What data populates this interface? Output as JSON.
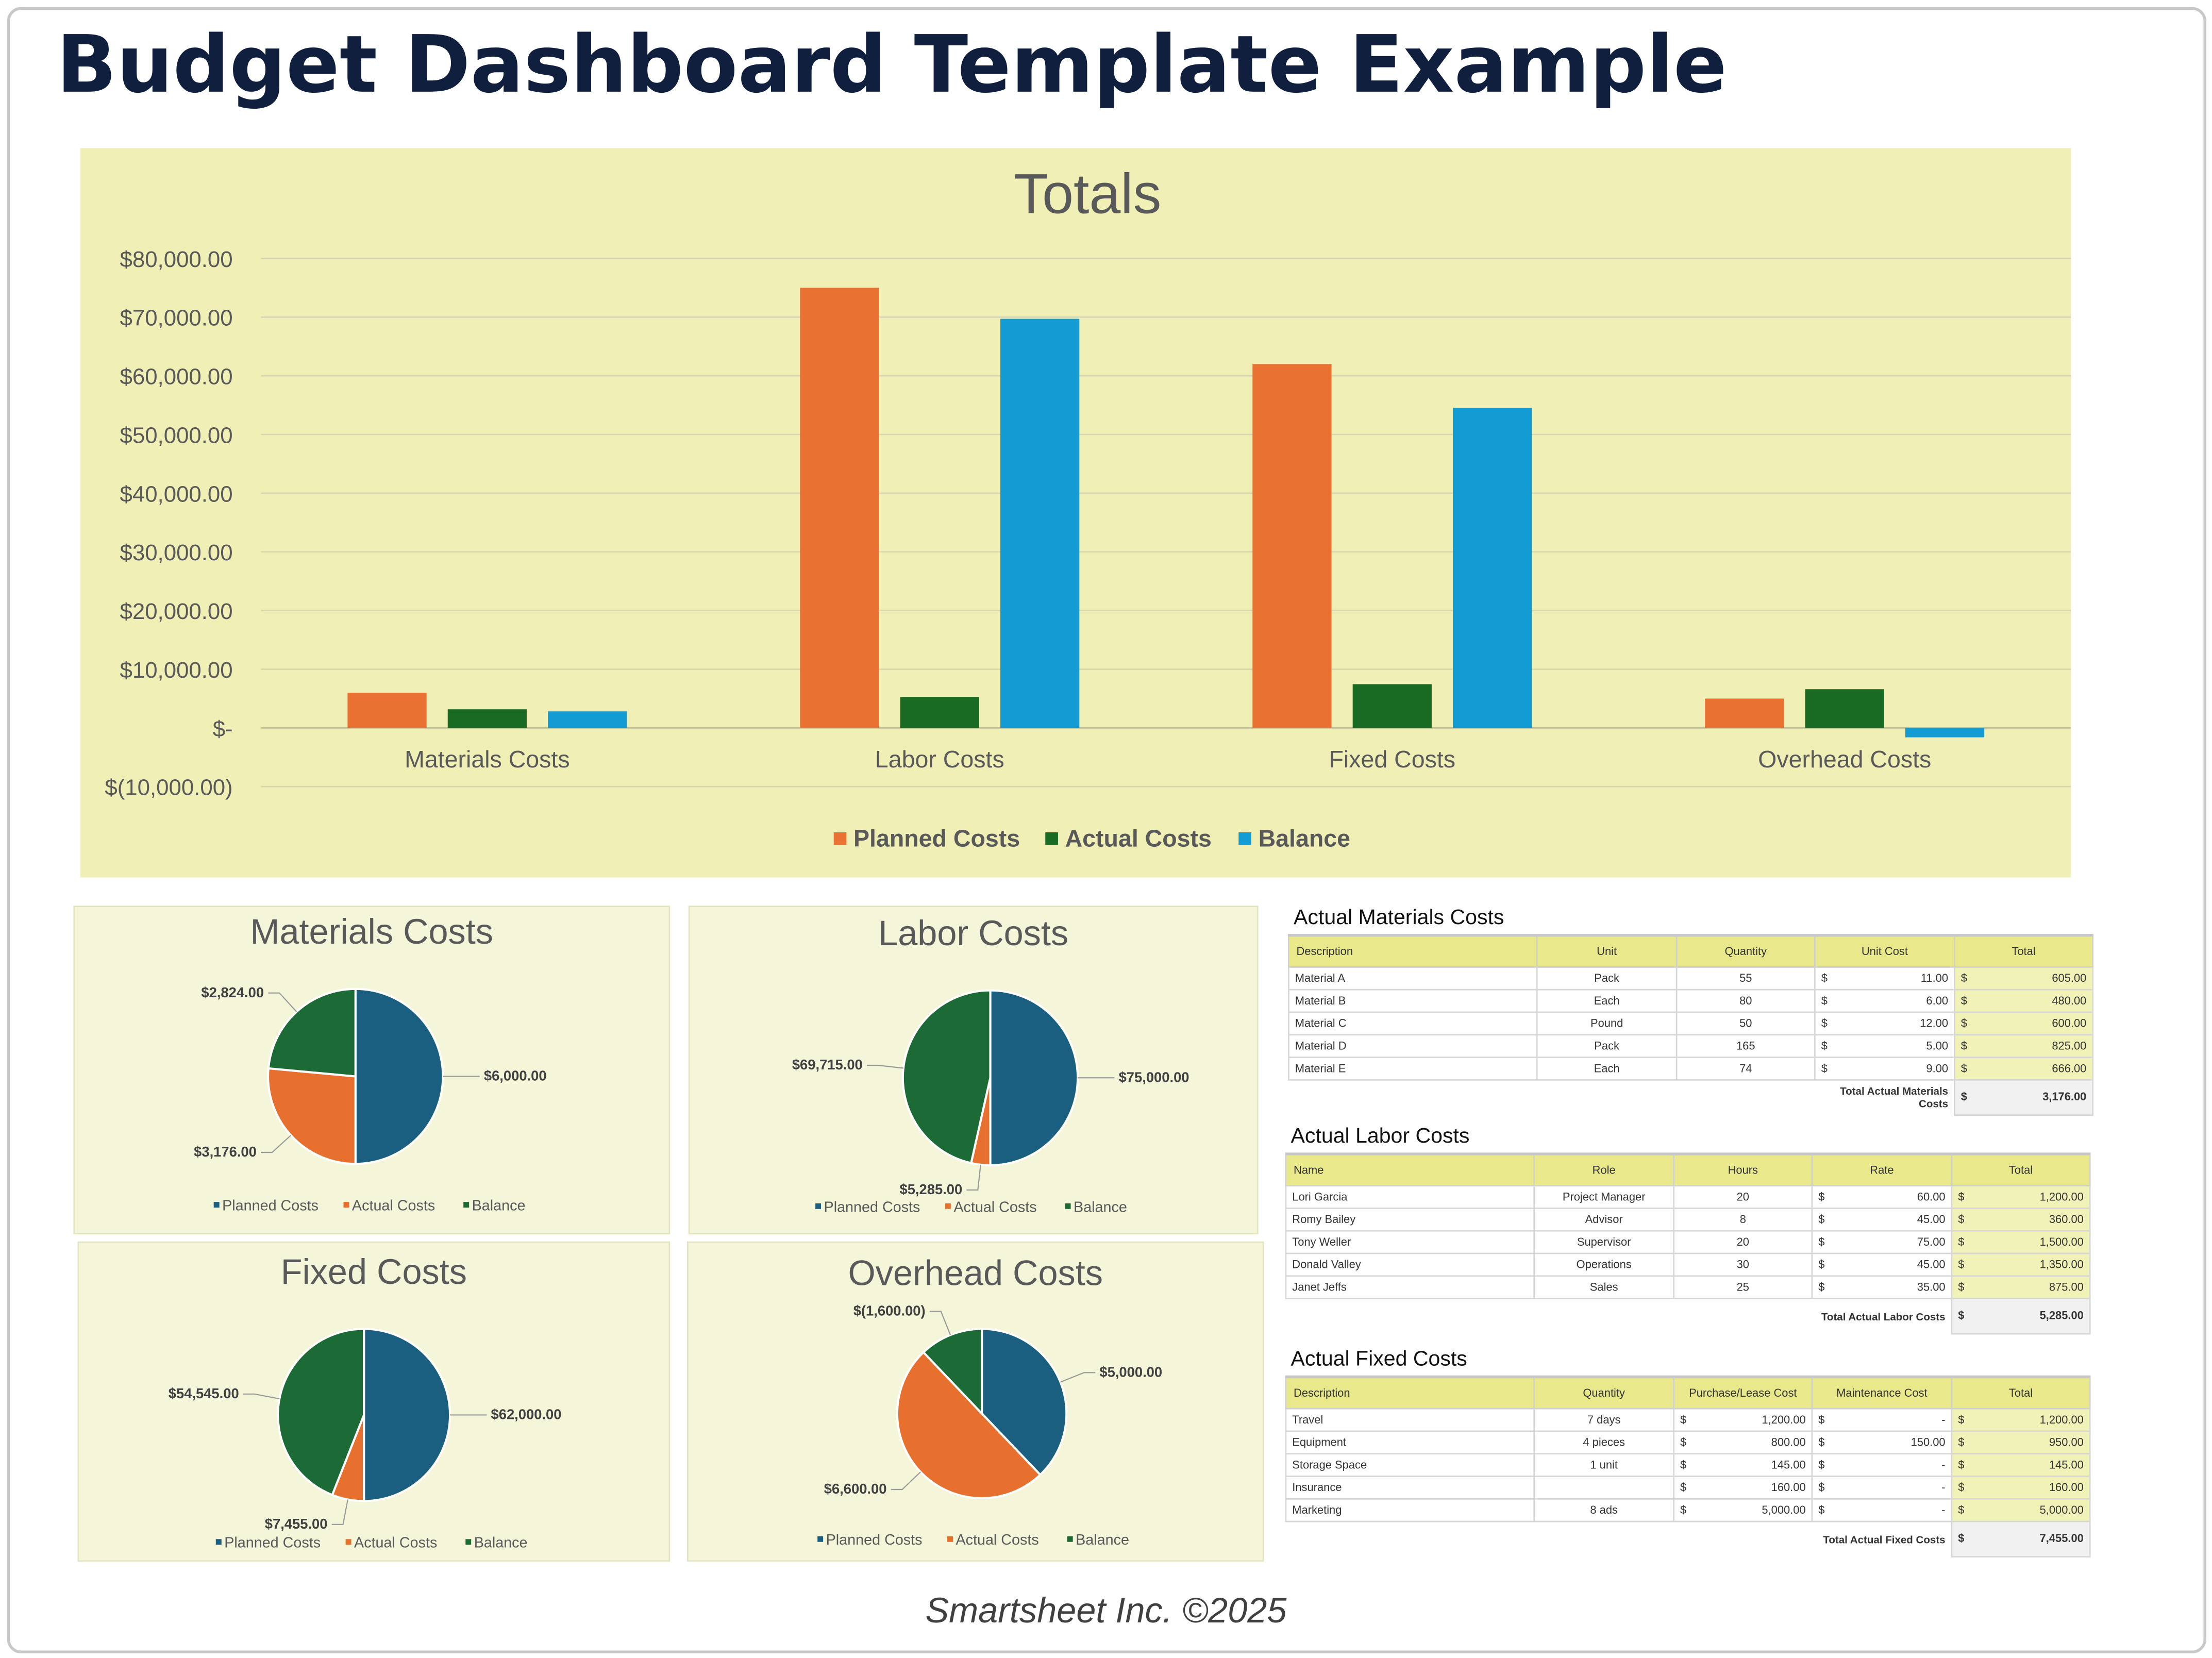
{
  "title": "Budget Dashboard Template Example",
  "footer": "Smartsheet Inc. ©2025",
  "colors": {
    "bar_planned": "#e97132",
    "bar_actual": "#196b24",
    "bar_balance": "#139cd4",
    "pie_planned": "#1a5f80",
    "pie_actual": "#e8702e",
    "pie_balance": "#1c6b37"
  },
  "chart_data": [
    {
      "type": "bar",
      "title": "Totals",
      "categories": [
        "Materials Costs",
        "Labor Costs",
        "Fixed Costs",
        "Overhead Costs"
      ],
      "series": [
        {
          "name": "Planned Costs",
          "values": [
            6000,
            75000,
            62000,
            5000
          ]
        },
        {
          "name": "Actual Costs",
          "values": [
            3176,
            5285,
            7455,
            6600
          ]
        },
        {
          "name": "Balance",
          "values": [
            2824,
            69715,
            54545,
            -1600
          ]
        }
      ],
      "ylim": [
        -10000,
        80000
      ],
      "yticks": [
        80000,
        70000,
        60000,
        50000,
        40000,
        30000,
        20000,
        10000,
        0,
        -10000
      ],
      "ytick_labels": [
        "$80,000.00",
        "$70,000.00",
        "$60,000.00",
        "$50,000.00",
        "$40,000.00",
        "$30,000.00",
        "$20,000.00",
        "$10,000.00",
        "$-",
        "$(10,000.00)"
      ],
      "grid": true,
      "legend": "bottom"
    },
    {
      "type": "pie",
      "title": "Materials Costs",
      "labels": [
        "Planned Costs",
        "Actual Costs",
        "Balance"
      ],
      "values": [
        6000,
        3176,
        2824
      ],
      "data_labels": [
        "$6,000.00",
        "$3,176.00",
        "$2,824.00"
      ],
      "legend": "bottom"
    },
    {
      "type": "pie",
      "title": "Labor Costs",
      "labels": [
        "Planned Costs",
        "Actual Costs",
        "Balance"
      ],
      "values": [
        75000,
        5285,
        69715
      ],
      "data_labels": [
        "$75,000.00",
        "$5,285.00",
        "$69,715.00"
      ],
      "legend": "bottom"
    },
    {
      "type": "pie",
      "title": "Fixed Costs",
      "labels": [
        "Planned Costs",
        "Actual Costs",
        "Balance"
      ],
      "values": [
        62000,
        7455,
        54545
      ],
      "data_labels": [
        "$62,000.00",
        "$7,455.00",
        "$54,545.00"
      ],
      "legend": "bottom"
    },
    {
      "type": "pie",
      "title": "Overhead Costs",
      "labels": [
        "Planned Costs",
        "Actual Costs",
        "Balance"
      ],
      "values": [
        5000,
        6600,
        -1600
      ],
      "data_labels": [
        "$5,000.00",
        "$6,600.00",
        "$(1,600.00)"
      ],
      "legend": "bottom"
    }
  ],
  "tables": [
    {
      "title": "Actual Materials Costs",
      "headers": [
        "Description",
        "Unit",
        "Quantity",
        "Unit Cost",
        "Total"
      ],
      "rows": [
        [
          "Material A",
          "Pack",
          "55",
          "11.00",
          "605.00"
        ],
        [
          "Material B",
          "Each",
          "80",
          "6.00",
          "480.00"
        ],
        [
          "Material C",
          "Pound",
          "50",
          "12.00",
          "600.00"
        ],
        [
          "Material D",
          "Pack",
          "165",
          "5.00",
          "825.00"
        ],
        [
          "Material E",
          "Each",
          "74",
          "9.00",
          "666.00"
        ]
      ],
      "money_cols": [
        3,
        4
      ],
      "total_label": "Total Actual Materials Costs",
      "total_value": "3,176.00"
    },
    {
      "title": "Actual Labor Costs",
      "headers": [
        "Name",
        "Role",
        "Hours",
        "Rate",
        "Total"
      ],
      "rows": [
        [
          "Lori Garcia",
          "Project Manager",
          "20",
          "60.00",
          "1,200.00"
        ],
        [
          "Romy Bailey",
          "Advisor",
          "8",
          "45.00",
          "360.00"
        ],
        [
          "Tony Weller",
          "Supervisor",
          "20",
          "75.00",
          "1,500.00"
        ],
        [
          "Donald Valley",
          "Operations",
          "30",
          "45.00",
          "1,350.00"
        ],
        [
          "Janet Jeffs",
          "Sales",
          "25",
          "35.00",
          "875.00"
        ]
      ],
      "money_cols": [
        3,
        4
      ],
      "total_label": "Total Actual Labor Costs",
      "total_value": "5,285.00"
    },
    {
      "title": "Actual Fixed Costs",
      "headers": [
        "Description",
        "Quantity",
        "Purchase/Lease Cost",
        "Maintenance Cost",
        "Total"
      ],
      "rows": [
        [
          "Travel",
          "7 days",
          "1,200.00",
          "-",
          "1,200.00"
        ],
        [
          "Equipment",
          "4 pieces",
          "800.00",
          "150.00",
          "950.00"
        ],
        [
          "Storage Space",
          "1 unit",
          "145.00",
          "-",
          "145.00"
        ],
        [
          "Insurance",
          "",
          "160.00",
          "-",
          "160.00"
        ],
        [
          "Marketing",
          "8 ads",
          "5,000.00",
          "-",
          "5,000.00"
        ]
      ],
      "money_cols": [
        2,
        3,
        4
      ],
      "total_label": "Total Actual Fixed Costs",
      "total_value": "7,455.00"
    }
  ],
  "currency_symbol": "$"
}
